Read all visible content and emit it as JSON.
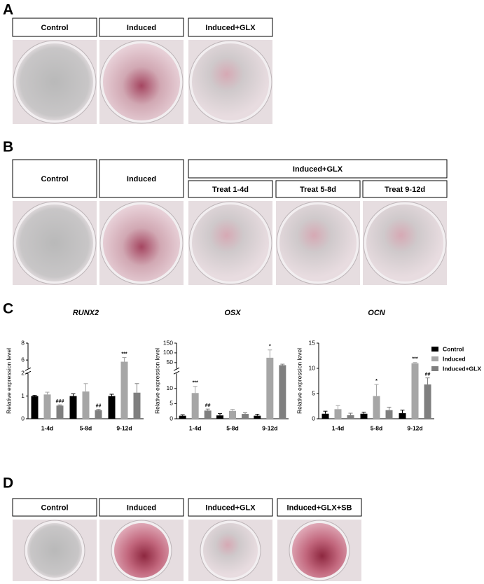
{
  "panels": {
    "A": {
      "label": "A",
      "headers": [
        "Control",
        "Induced",
        "Induced+GLX"
      ]
    },
    "B": {
      "label": "B",
      "headers": [
        "Control",
        "Induced"
      ],
      "group": "Induced+GLX",
      "subheaders": [
        "Treat 1-4d",
        "Treat 5-8d",
        "Treat 9-12d"
      ]
    },
    "C": {
      "label": "C"
    },
    "D": {
      "label": "D",
      "headers": [
        "Control",
        "Induced",
        "Induced+GLX",
        "Induced+GLX+SB"
      ]
    }
  },
  "chart_data": [
    {
      "type": "bar",
      "title": "RUNX2",
      "ylabel": "Relative expression level",
      "categories": [
        "1-4d",
        "5-8d",
        "9-12d"
      ],
      "axis_segments": [
        {
          "ylim": [
            0,
            2
          ],
          "yticks": [
            0,
            1,
            2
          ]
        },
        {
          "ylim": [
            5,
            8
          ],
          "yticks": [
            6,
            8
          ]
        }
      ],
      "series": [
        {
          "color": "#000000",
          "values": [
            1.0,
            1.0,
            1.0
          ],
          "errors": [
            0.03,
            0.1,
            0.08
          ],
          "significance": [
            null,
            null,
            null
          ]
        },
        {
          "color": "#a6a6a6",
          "values": [
            1.07,
            1.2,
            5.8
          ],
          "errors": [
            0.1,
            0.35,
            0.5
          ],
          "significance": [
            null,
            null,
            "***"
          ]
        },
        {
          "color": "#7f7f7f",
          "values": [
            0.58,
            0.38,
            1.15
          ],
          "errors": [
            0.03,
            0.03,
            0.4
          ],
          "significance": [
            "###",
            "##",
            null
          ]
        }
      ]
    },
    {
      "type": "bar",
      "title": "OSX",
      "ylabel": "Relative expression level",
      "categories": [
        "1-4d",
        "5-8d",
        "9-12d"
      ],
      "axis_segments": [
        {
          "ylim": [
            0,
            15
          ],
          "yticks": [
            0,
            5,
            10
          ]
        },
        {
          "ylim": [
            20,
            150
          ],
          "yticks": [
            50,
            100,
            150
          ]
        }
      ],
      "series": [
        {
          "color": "#000000",
          "values": [
            1.0,
            1.1,
            1.0
          ],
          "errors": [
            0.3,
            0.6,
            0.5
          ],
          "significance": [
            null,
            null,
            null
          ]
        },
        {
          "color": "#a6a6a6",
          "values": [
            8.5,
            2.6,
            75
          ],
          "errors": [
            2.2,
            0.5,
            40
          ],
          "significance": [
            "***",
            null,
            "*"
          ]
        },
        {
          "color": "#7f7f7f",
          "values": [
            2.7,
            1.6,
            37
          ],
          "errors": [
            0.5,
            0.4,
            5
          ],
          "significance": [
            "##",
            null,
            null
          ]
        }
      ]
    },
    {
      "type": "bar",
      "title": "OCN",
      "ylabel": "Relative expression level",
      "categories": [
        "1-4d",
        "5-8d",
        "9-12d"
      ],
      "axis_segments": [
        {
          "ylim": [
            0,
            15
          ],
          "yticks": [
            0,
            5,
            10,
            15
          ]
        }
      ],
      "legend": "right",
      "series": [
        {
          "name": "Control",
          "color": "#000000",
          "values": [
            1.0,
            1.0,
            1.1
          ],
          "errors": [
            0.5,
            0.3,
            0.6
          ],
          "significance": [
            null,
            null,
            null
          ]
        },
        {
          "name": "Induced",
          "color": "#a6a6a6",
          "values": [
            1.9,
            4.5,
            11.0
          ],
          "errors": [
            0.7,
            2.3,
            0.15
          ],
          "significance": [
            null,
            "*",
            "***"
          ]
        },
        {
          "name": "Induced+GLX",
          "color": "#7f7f7f",
          "values": [
            0.7,
            1.7,
            6.8
          ],
          "errors": [
            0.4,
            0.6,
            1.3
          ],
          "significance": [
            null,
            null,
            "##"
          ]
        }
      ]
    }
  ]
}
